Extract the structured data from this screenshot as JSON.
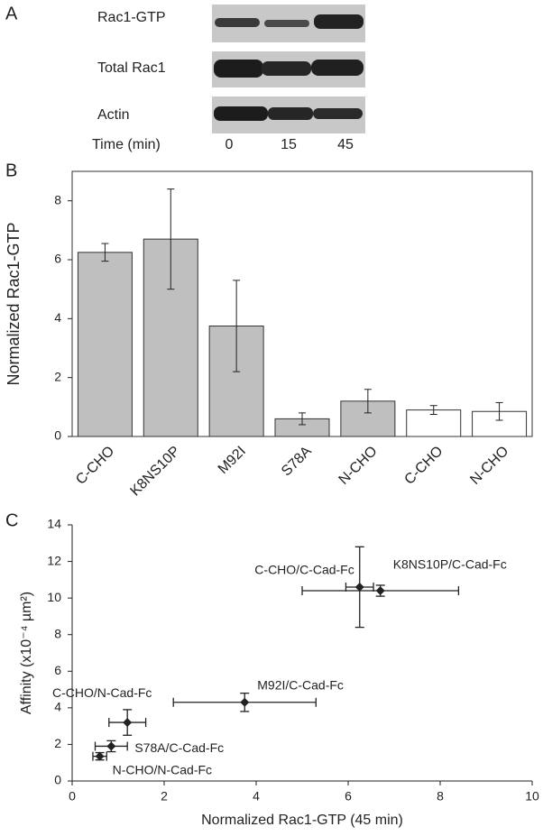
{
  "panel_a": {
    "panel_label": "A",
    "row_labels": [
      "Rac1-GTP",
      "Total Rac1",
      "Actin"
    ],
    "time_label": "Time (min)",
    "times": [
      "0",
      "15",
      "45"
    ]
  },
  "chart_data": [
    {
      "type": "bar",
      "panel_label": "B",
      "y_label": "Normalized Rac1-GTP",
      "categories": [
        "C-CHO",
        "K8NS10P",
        "M92I",
        "S78A",
        "N-CHO",
        "C-CHO",
        "N-CHO"
      ],
      "values": [
        6.25,
        6.7,
        3.75,
        0.6,
        1.2,
        0.9,
        0.85
      ],
      "errors": [
        0.3,
        1.7,
        1.55,
        0.2,
        0.4,
        0.15,
        0.3
      ],
      "colors": [
        "#bfbfbf",
        "#bfbfbf",
        "#bfbfbf",
        "#bfbfbf",
        "#bfbfbf",
        "#ffffff",
        "#ffffff"
      ],
      "ylim": [
        0,
        9
      ],
      "yticks": [
        0,
        2,
        4,
        6,
        8
      ]
    },
    {
      "type": "scatter",
      "panel_label": "C",
      "x_label": "Normalized Rac1-GTP (45 min)",
      "y_label": "Affinity (x10⁻⁴ µm²)",
      "point_labels": [
        "C-CHO/C-Cad-Fc",
        "K8NS10P/C-Cad-Fc",
        "M92I/C-Cad-Fc",
        "C-CHO/N-Cad-Fc",
        "S78A/C-Cad-Fc",
        "N-CHO/N-Cad-Fc"
      ],
      "x": [
        6.25,
        6.7,
        3.75,
        1.2,
        0.85,
        0.6
      ],
      "x_errors": [
        0.3,
        1.7,
        1.55,
        0.4,
        0.35,
        0.15
      ],
      "values": [
        10.6,
        10.4,
        4.3,
        3.2,
        1.9,
        1.35
      ],
      "errors": [
        2.2,
        0.3,
        0.5,
        0.7,
        0.3,
        0.2
      ],
      "color": "#222222",
      "xlim": [
        0,
        10
      ],
      "xticks": [
        0,
        2,
        4,
        6,
        8,
        10
      ],
      "ylim": [
        0,
        14
      ],
      "yticks": [
        0,
        2,
        4,
        6,
        8,
        10,
        12,
        14
      ]
    }
  ]
}
